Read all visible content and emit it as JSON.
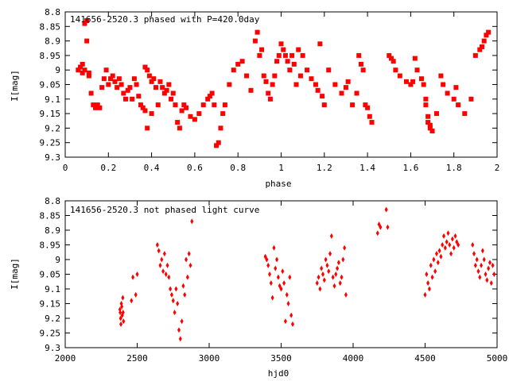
{
  "colors": {
    "points": "#ff0000",
    "axes": "#000000",
    "background": "#ffffff"
  },
  "chart_data": [
    {
      "type": "scatter",
      "title": "141656-2520.3 phased with P=420.0day",
      "xlabel": "phase",
      "ylabel": "I[mag]",
      "xlim": [
        0,
        2
      ],
      "ylim": [
        8.8,
        9.3
      ],
      "y_inverted": true,
      "marker": "square",
      "grid": false,
      "xticks": [
        "0",
        "0.2",
        "0.4",
        "0.6",
        "0.8",
        "1",
        "1.2",
        "1.4",
        "1.6",
        "1.8",
        "2"
      ],
      "yticks": [
        "8.8",
        "8.85",
        "8.9",
        "8.95",
        "9",
        "9.05",
        "9.1",
        "9.15",
        "9.2",
        "9.25",
        "9.3"
      ],
      "series": [
        {
          "x": [
            0.06,
            0.07,
            0.08,
            0.08,
            0.09,
            0.09,
            0.1,
            0.1,
            0.11,
            0.11,
            0.12,
            0.13,
            0.14,
            0.15,
            0.16,
            0.17,
            0.18,
            0.19,
            0.2,
            0.21,
            0.22,
            0.23,
            0.24,
            0.25,
            0.26,
            0.27,
            0.28,
            0.29,
            0.3,
            0.31,
            0.32,
            0.33,
            0.34,
            0.35,
            0.36,
            0.37,
            0.37,
            0.38,
            0.38,
            0.39,
            0.4,
            0.4,
            0.41,
            0.42,
            0.43,
            0.44,
            0.45,
            0.46,
            0.47,
            0.48,
            0.49,
            0.5,
            0.51,
            0.52,
            0.53,
            0.54,
            0.55,
            0.56,
            0.58,
            0.6,
            0.62,
            0.64,
            0.66,
            0.67,
            0.68,
            0.69,
            0.7,
            0.71,
            0.72,
            0.73,
            0.74,
            0.76,
            0.78,
            0.8,
            0.82,
            0.84,
            0.86,
            0.88,
            0.89,
            0.9,
            0.91,
            0.92,
            0.93,
            0.94,
            0.95,
            0.96,
            0.97,
            0.98,
            0.99,
            1.0,
            1.01,
            1.02,
            1.03,
            1.04,
            1.05,
            1.06,
            1.07,
            1.08,
            1.09,
            1.1,
            1.12,
            1.14,
            1.16,
            1.17,
            1.18,
            1.19,
            1.2,
            1.22,
            1.25,
            1.28,
            1.3,
            1.31,
            1.33,
            1.35,
            1.36,
            1.37,
            1.38,
            1.39,
            1.4,
            1.41,
            1.42,
            1.5,
            1.51,
            1.52,
            1.53,
            1.55,
            1.58,
            1.6,
            1.61,
            1.62,
            1.63,
            1.65,
            1.66,
            1.67,
            1.67,
            1.68,
            1.68,
            1.69,
            1.69,
            1.7,
            1.72,
            1.74,
            1.75,
            1.77,
            1.8,
            1.81,
            1.82,
            1.85,
            1.88,
            1.9,
            1.92,
            1.93,
            1.94,
            1.95,
            1.96
          ],
          "y": [
            9.0,
            8.99,
            8.98,
            9.01,
            9.0,
            8.84,
            8.83,
            8.9,
            9.01,
            9.02,
            9.08,
            9.12,
            9.13,
            9.12,
            9.13,
            9.06,
            9.03,
            9.0,
            9.05,
            9.03,
            9.02,
            9.04,
            9.06,
            9.03,
            9.05,
            9.08,
            9.1,
            9.07,
            9.06,
            9.1,
            9.03,
            9.05,
            9.09,
            9.12,
            9.13,
            9.14,
            8.99,
            9.0,
            9.2,
            9.02,
            9.04,
            9.15,
            9.03,
            9.06,
            9.12,
            9.04,
            9.06,
            9.08,
            9.07,
            9.05,
            9.1,
            9.08,
            9.12,
            9.18,
            9.2,
            9.14,
            9.12,
            9.13,
            9.16,
            9.17,
            9.15,
            9.12,
            9.1,
            9.09,
            9.08,
            9.12,
            9.26,
            9.25,
            9.2,
            9.15,
            9.12,
            9.05,
            9.0,
            8.98,
            8.97,
            9.02,
            9.07,
            8.9,
            8.87,
            8.95,
            8.93,
            9.02,
            9.04,
            9.08,
            9.1,
            9.05,
            9.02,
            8.97,
            8.95,
            8.91,
            8.93,
            8.95,
            8.97,
            9.0,
            8.95,
            8.98,
            9.05,
            8.93,
            9.02,
            8.95,
            9.0,
            9.03,
            9.05,
            9.07,
            8.91,
            9.09,
            9.12,
            9.0,
            9.05,
            9.08,
            9.06,
            9.04,
            9.12,
            9.08,
            8.95,
            8.98,
            9.0,
            9.12,
            9.13,
            9.16,
            9.18,
            8.95,
            8.96,
            8.97,
            9.0,
            9.02,
            9.04,
            9.05,
            9.04,
            8.96,
            9.0,
            9.03,
            9.05,
            9.1,
            9.12,
            9.16,
            9.18,
            9.19,
            9.2,
            9.21,
            9.15,
            9.02,
            9.05,
            9.08,
            9.1,
            9.06,
            9.12,
            9.15,
            9.1,
            8.95,
            8.93,
            8.92,
            8.9,
            8.88,
            8.87
          ]
        }
      ]
    },
    {
      "type": "scatter",
      "title": "141656-2520.3 not phased light curve",
      "xlabel": "hjd0",
      "ylabel": "I[mag]",
      "xlim": [
        2000,
        5000
      ],
      "ylim": [
        8.8,
        9.3
      ],
      "y_inverted": true,
      "marker": "diamond",
      "grid": false,
      "xticks": [
        "2000",
        "2500",
        "3000",
        "3500",
        "4000",
        "4500",
        "5000"
      ],
      "yticks": [
        "8.8",
        "8.85",
        "8.9",
        "8.95",
        "9",
        "9.05",
        "9.1",
        "9.15",
        "9.2",
        "9.25",
        "9.3"
      ],
      "series": [
        {
          "x": [
            2380,
            2382,
            2385,
            2387,
            2390,
            2393,
            2396,
            2400,
            2402,
            2405,
            2460,
            2470,
            2490,
            2500,
            2640,
            2650,
            2660,
            2670,
            2680,
            2690,
            2700,
            2710,
            2720,
            2730,
            2740,
            2750,
            2760,
            2770,
            2780,
            2790,
            2800,
            2810,
            2820,
            2830,
            2840,
            2850,
            2860,
            2870,
            2880,
            3390,
            3400,
            3410,
            3420,
            3430,
            3440,
            3450,
            3460,
            3470,
            3480,
            3490,
            3500,
            3510,
            3520,
            3530,
            3540,
            3550,
            3560,
            3570,
            3580,
            3750,
            3760,
            3770,
            3780,
            3790,
            3800,
            3810,
            3820,
            3830,
            3840,
            3850,
            3860,
            3870,
            3880,
            3890,
            3900,
            3910,
            3920,
            3930,
            3940,
            3950,
            4170,
            4180,
            4190,
            4230,
            4240,
            4500,
            4510,
            4520,
            4530,
            4540,
            4550,
            4560,
            4570,
            4580,
            4590,
            4600,
            4610,
            4620,
            4630,
            4640,
            4650,
            4660,
            4670,
            4680,
            4690,
            4700,
            4710,
            4720,
            4730,
            4830,
            4840,
            4850,
            4860,
            4870,
            4880,
            4890,
            4900,
            4910,
            4920,
            4930,
            4940,
            4950,
            4960,
            4970,
            4980
          ],
          "y": [
            9.17,
            9.18,
            9.2,
            9.22,
            9.15,
            9.16,
            9.19,
            9.13,
            9.18,
            9.21,
            9.14,
            9.06,
            9.12,
            9.05,
            8.95,
            8.97,
            9.02,
            9.0,
            9.04,
            8.98,
            9.05,
            9.02,
            9.06,
            9.1,
            9.12,
            9.14,
            9.18,
            9.1,
            9.15,
            9.24,
            9.27,
            9.21,
            9.09,
            9.12,
            9.0,
            9.06,
            8.98,
            9.02,
            8.87,
            8.99,
            9.0,
            9.02,
            9.05,
            9.08,
            9.13,
            8.96,
            9.03,
            9.0,
            9.06,
            9.09,
            9.1,
            9.04,
            9.08,
            9.21,
            9.12,
            9.15,
            9.06,
            9.19,
            9.22,
            9.08,
            9.06,
            9.1,
            9.03,
            9.05,
            9.07,
            9.0,
            9.02,
            9.04,
            8.98,
            8.92,
            9.06,
            9.09,
            9.05,
            9.03,
            9.01,
            9.08,
            9.06,
            9.0,
            8.96,
            9.12,
            8.91,
            8.88,
            8.89,
            8.83,
            8.89,
            9.12,
            9.05,
            9.08,
            9.1,
            9.02,
            9.06,
            9.0,
            9.04,
            8.98,
            9.01,
            8.97,
            8.99,
            8.95,
            8.92,
            8.96,
            8.94,
            8.91,
            8.95,
            8.98,
            8.93,
            8.96,
            8.92,
            8.94,
            8.95,
            8.95,
            8.98,
            9.02,
            9.0,
            9.04,
            9.06,
            9.02,
            8.97,
            9.0,
            9.05,
            9.07,
            9.03,
            9.01,
            9.08,
            9.02,
            9.05
          ]
        }
      ]
    }
  ]
}
